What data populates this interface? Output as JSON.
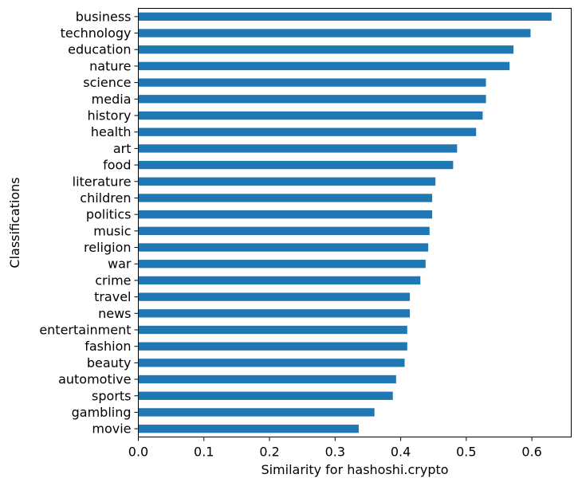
{
  "chart_data": {
    "type": "bar",
    "orientation": "horizontal",
    "xlabel": "Similarity for hashoshi.crypto",
    "ylabel": "Classifications",
    "xlim": [
      0.0,
      0.66
    ],
    "xticks": [
      "0.0",
      "0.1",
      "0.2",
      "0.3",
      "0.4",
      "0.5",
      "0.6"
    ],
    "grid": false,
    "bar_color": "#1f77b4",
    "categories": [
      "business",
      "technology",
      "education",
      "nature",
      "science",
      "media",
      "history",
      "health",
      "art",
      "food",
      "literature",
      "children",
      "politics",
      "music",
      "religion",
      "war",
      "crime",
      "travel",
      "news",
      "entertainment",
      "fashion",
      "beauty",
      "automotive",
      "sports",
      "gambling",
      "movie"
    ],
    "values": [
      0.63,
      0.598,
      0.572,
      0.566,
      0.53,
      0.53,
      0.525,
      0.515,
      0.486,
      0.48,
      0.453,
      0.448,
      0.448,
      0.444,
      0.442,
      0.438,
      0.43,
      0.414,
      0.414,
      0.41,
      0.41,
      0.406,
      0.393,
      0.388,
      0.36,
      0.336
    ]
  }
}
